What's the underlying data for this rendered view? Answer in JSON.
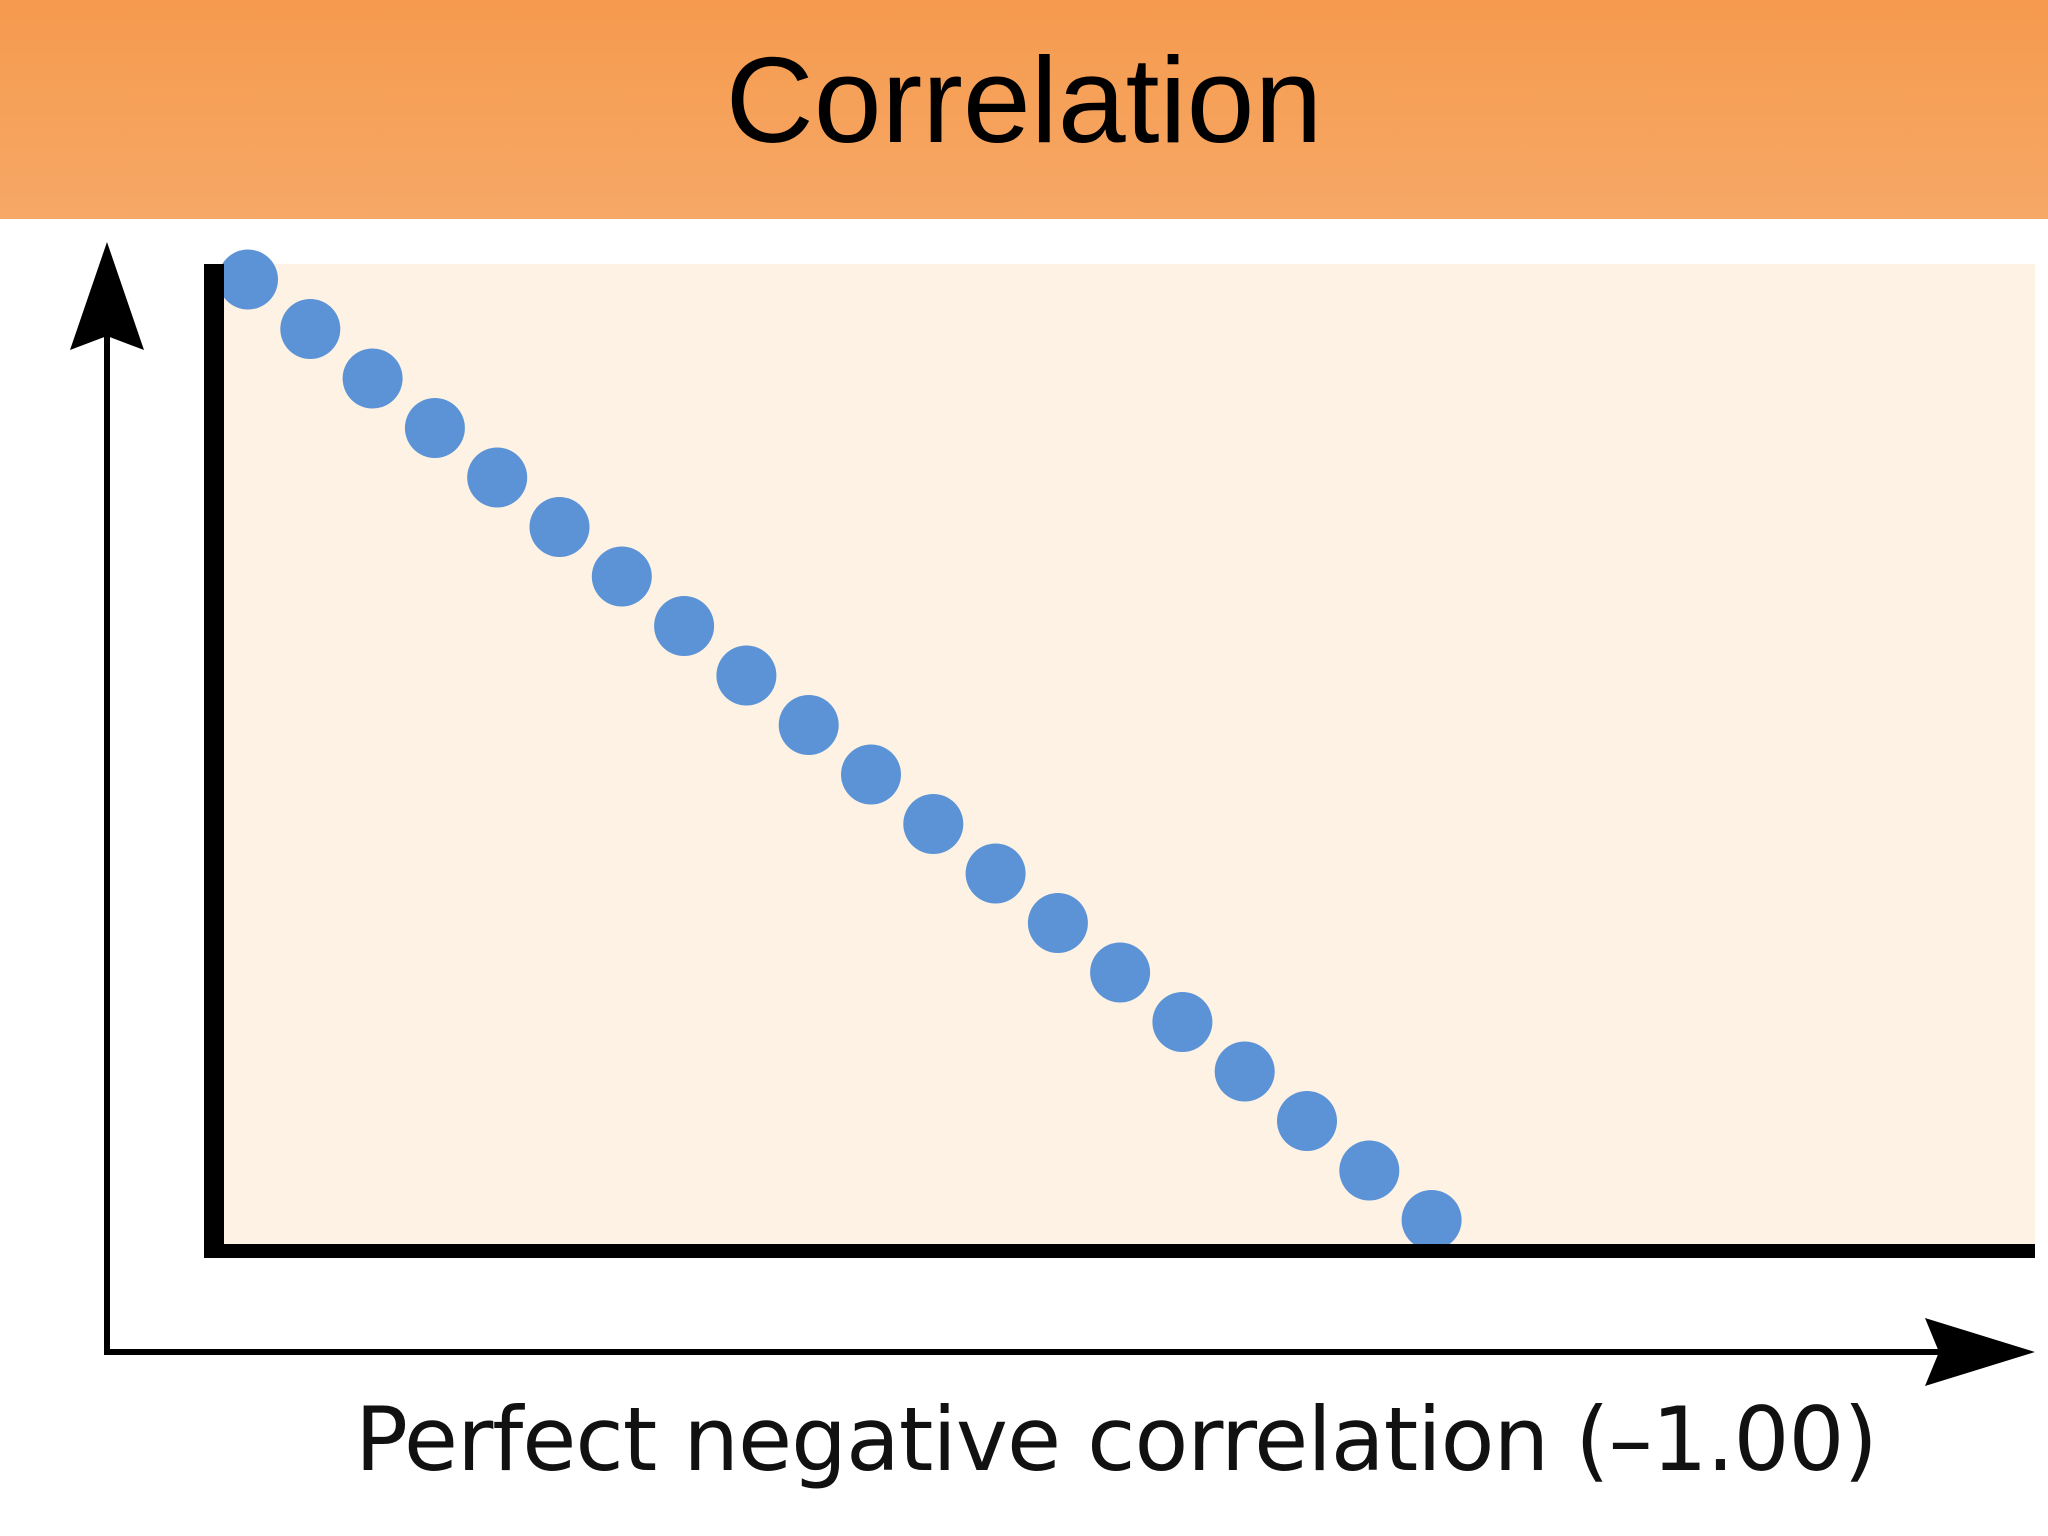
{
  "header": {
    "title": "Correlation"
  },
  "chart_data": {
    "type": "scatter",
    "title": "",
    "xlabel": "Perfect negative correlation (–1.00)",
    "ylabel": "",
    "xlim": [
      0,
      27
    ],
    "ylim": [
      0,
      20
    ],
    "grid": false,
    "x": [
      0,
      1,
      2,
      3,
      4,
      5,
      6,
      7,
      8,
      9,
      10,
      11,
      12,
      13,
      14,
      15,
      16,
      17,
      18,
      19
    ],
    "y": [
      19,
      18,
      17,
      16,
      15,
      14,
      13,
      12,
      11,
      10,
      9,
      8,
      7,
      6,
      5,
      4,
      3,
      2,
      1,
      0
    ],
    "point_color": "#5b93d6",
    "plot_background": "#fdf2e4"
  },
  "colors": {
    "header_bg": "#f59a4e",
    "axis": "#000000"
  }
}
